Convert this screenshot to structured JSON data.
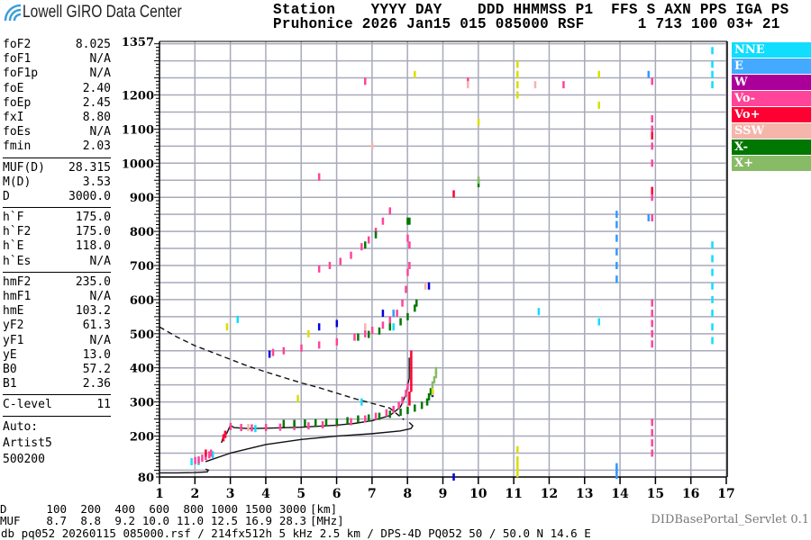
{
  "logo": {
    "text": "Lowell GIRO Data Center"
  },
  "header": {
    "line1": "Station    YYYY DAY    DDD HHMMSS P1  FFS S AXN PPS IGA PS",
    "line2": "Pruhonice 2026 Jan15 015 085000 RSF      1 713 100 03+ 21"
  },
  "params": {
    "group1": [
      [
        "foF2",
        "8.025"
      ],
      [
        "foF1",
        "N/A"
      ],
      [
        "foF1p",
        "N/A"
      ],
      [
        "foE",
        "2.40"
      ],
      [
        "foEp",
        "2.45"
      ],
      [
        "fxI",
        "8.80"
      ],
      [
        "foEs",
        "N/A"
      ],
      [
        "fmin",
        "2.03"
      ]
    ],
    "group2": [
      [
        "MUF(D)",
        "28.315"
      ],
      [
        "M(D)",
        "3.53"
      ],
      [
        "D",
        "3000.0"
      ]
    ],
    "group3": [
      [
        "h`F",
        "175.0"
      ],
      [
        "h`F2",
        "175.0"
      ],
      [
        "h`E",
        "118.0"
      ],
      [
        "h`Es",
        "N/A"
      ]
    ],
    "group4": [
      [
        "hmF2",
        "235.0"
      ],
      [
        "hmF1",
        "N/A"
      ],
      [
        "hmE",
        "103.2"
      ],
      [
        "yF2",
        "61.3"
      ],
      [
        "yF1",
        "N/A"
      ],
      [
        "yE",
        "13.0"
      ],
      [
        "B0",
        "57.2"
      ],
      [
        "B1",
        "2.36"
      ]
    ],
    "group5": [
      [
        "C-level",
        "11"
      ]
    ],
    "auto": [
      "Auto:",
      "Artist5",
      "500200"
    ]
  },
  "legend": [
    {
      "label": "NNE",
      "color": "#11ddff"
    },
    {
      "label": "E",
      "color": "#44aaff"
    },
    {
      "label": "W",
      "color": "#aa0099"
    },
    {
      "label": "Vo-",
      "color": "#ff4499"
    },
    {
      "label": "Vo+",
      "color": "#ff0033"
    },
    {
      "label": "SSW",
      "color": "#f5b5ab"
    },
    {
      "label": "X-",
      "color": "#007700"
    },
    {
      "label": "X+",
      "color": "#88bb66"
    }
  ],
  "footer": {
    "d_label": "D",
    "d_values": [
      "100",
      "200",
      "400",
      "600",
      "800",
      "1000",
      "1500",
      "3000",
      "[km]"
    ],
    "muf_label": "MUF",
    "muf_values": [
      "8.7",
      "8.8",
      "9.2",
      "10.0",
      "11.0",
      "12.5",
      "16.9",
      "28.3",
      "[MHz]"
    ],
    "info": "db pq052 20260115 085000.rsf / 214fx512h 5 kHz 2.5 km / DPS-4D PQ052 50 / 50.0 N 14.6 E",
    "servlet": "DIDBasePortal_Servlet 0.1"
  },
  "chart_data": {
    "type": "scatter",
    "xlim": [
      1,
      17
    ],
    "ylim": [
      80,
      1357
    ],
    "xticks": [
      "1",
      "2",
      "3",
      "4",
      "5",
      "6",
      "7",
      "8",
      "9",
      "10",
      "11",
      "12",
      "13",
      "14",
      "15",
      "16",
      "17"
    ],
    "yticks": [
      "80",
      "200",
      "300",
      "400",
      "500",
      "600",
      "700",
      "800",
      "900",
      "1000",
      "1100",
      "1200",
      "1357"
    ],
    "grid": true,
    "legend_position": "right",
    "series": [
      {
        "name": "NNE",
        "color": "#11ddff",
        "points": [
          [
            16.6,
            480
          ],
          [
            16.6,
            520
          ],
          [
            16.6,
            560
          ],
          [
            16.6,
            600
          ],
          [
            16.6,
            640
          ],
          [
            16.6,
            680
          ],
          [
            16.6,
            720
          ],
          [
            16.6,
            760
          ],
          [
            16.6,
            1230
          ],
          [
            16.6,
            1260
          ],
          [
            16.6,
            1290
          ],
          [
            16.6,
            1330
          ],
          [
            1.9,
            125
          ],
          [
            2.1,
            125
          ],
          [
            2.5,
            145
          ],
          [
            3.7,
            222
          ],
          [
            3.2,
            542
          ],
          [
            13.4,
            535
          ],
          [
            11.7,
            565
          ],
          [
            6.7,
            300
          ],
          [
            7.6,
            520
          ]
        ]
      },
      {
        "name": "E",
        "color": "#3399ff",
        "points": [
          [
            13.9,
            660
          ],
          [
            13.9,
            700
          ],
          [
            13.9,
            740
          ],
          [
            13.9,
            780
          ],
          [
            13.9,
            820
          ],
          [
            13.9,
            850
          ],
          [
            13.9,
            85
          ],
          [
            13.9,
            100
          ],
          [
            13.9,
            110
          ],
          [
            14.8,
            840
          ],
          [
            14.8,
            1260
          ],
          [
            7.6,
            560
          ]
        ]
      },
      {
        "name": "W",
        "color": "#0000dd",
        "points": [
          [
            5.5,
            520
          ],
          [
            4.1,
            440
          ],
          [
            6.0,
            530
          ],
          [
            7.3,
            560
          ],
          [
            8.6,
            640
          ],
          [
            8.7,
            325
          ],
          [
            9.3,
            80
          ]
        ]
      },
      {
        "name": "Vo-",
        "color": "#ff4499",
        "points": [
          [
            2.0,
            128
          ],
          [
            2.1,
            130
          ],
          [
            2.2,
            135
          ],
          [
            2.3,
            140
          ],
          [
            2.4,
            145
          ],
          [
            2.45,
            150
          ],
          [
            2.85,
            205
          ],
          [
            3.0,
            228
          ],
          [
            3.3,
            225
          ],
          [
            3.6,
            224
          ],
          [
            4.0,
            225
          ],
          [
            4.4,
            226
          ],
          [
            4.8,
            228
          ],
          [
            5.2,
            230
          ],
          [
            5.6,
            233
          ],
          [
            6.0,
            237
          ],
          [
            6.4,
            242
          ],
          [
            6.8,
            250
          ],
          [
            7.1,
            258
          ],
          [
            7.4,
            268
          ],
          [
            7.6,
            278
          ],
          [
            7.75,
            290
          ],
          [
            7.85,
            305
          ],
          [
            7.95,
            325
          ],
          [
            8.0,
            345
          ],
          [
            4.2,
            445
          ],
          [
            4.5,
            450
          ],
          [
            5.0,
            458
          ],
          [
            5.5,
            467
          ],
          [
            6.0,
            476
          ],
          [
            6.5,
            490
          ],
          [
            6.8,
            500
          ],
          [
            7.0,
            510
          ],
          [
            7.3,
            525
          ],
          [
            7.5,
            540
          ],
          [
            7.7,
            560
          ],
          [
            7.85,
            590
          ],
          [
            7.95,
            630
          ],
          [
            8.0,
            680
          ],
          [
            8.05,
            700
          ],
          [
            5.5,
            690
          ],
          [
            5.8,
            700
          ],
          [
            6.1,
            712
          ],
          [
            6.4,
            730
          ],
          [
            6.7,
            755
          ],
          [
            6.9,
            775
          ],
          [
            7.1,
            800
          ],
          [
            7.3,
            830
          ],
          [
            7.5,
            860
          ],
          [
            14.9,
            470
          ],
          [
            14.9,
            500
          ],
          [
            14.9,
            530
          ],
          [
            14.9,
            560
          ],
          [
            14.9,
            590
          ],
          [
            14.9,
            840
          ],
          [
            14.9,
            900
          ],
          [
            14.9,
            1000
          ],
          [
            14.9,
            1050
          ],
          [
            14.9,
            1100
          ],
          [
            14.9,
            1130
          ],
          [
            14.9,
            150
          ],
          [
            14.9,
            180
          ],
          [
            14.9,
            210
          ],
          [
            14.9,
            240
          ],
          [
            14.9,
            1240
          ],
          [
            6.8,
            1240
          ],
          [
            9.7,
            1240
          ],
          [
            12.4,
            1230
          ],
          [
            5.5,
            960
          ],
          [
            8.0,
            780
          ],
          [
            8.05,
            760
          ]
        ]
      },
      {
        "name": "Vo+",
        "color": "#ff0033",
        "points": [
          [
            8.05,
            300
          ],
          [
            8.05,
            320
          ],
          [
            8.1,
            340
          ],
          [
            8.1,
            360
          ],
          [
            8.1,
            380
          ],
          [
            8.1,
            400
          ],
          [
            8.1,
            420
          ],
          [
            8.1,
            440
          ],
          [
            2.8,
            195
          ],
          [
            2.85,
            205
          ],
          [
            2.3,
            150
          ],
          [
            9.3,
            910
          ],
          [
            14.9,
            920
          ],
          [
            14.9,
            1080
          ]
        ]
      },
      {
        "name": "SSW",
        "color": "#f5b5ab",
        "points": [
          [
            9.7,
            1230
          ],
          [
            11.6,
            1230
          ],
          [
            8.5,
            640
          ],
          [
            7.0,
            1050
          ],
          [
            6.8,
            520
          ],
          [
            3.5,
            225
          ]
        ]
      },
      {
        "name": "X-",
        "color": "#007700",
        "points": [
          [
            4.5,
            237
          ],
          [
            4.8,
            237
          ],
          [
            5.1,
            238
          ],
          [
            5.4,
            239
          ],
          [
            5.7,
            240
          ],
          [
            6.0,
            241
          ],
          [
            6.3,
            245
          ],
          [
            6.6,
            250
          ],
          [
            6.9,
            253
          ],
          [
            7.2,
            258
          ],
          [
            7.5,
            264
          ],
          [
            7.8,
            270
          ],
          [
            8.0,
            275
          ],
          [
            8.2,
            282
          ],
          [
            8.4,
            290
          ],
          [
            8.55,
            300
          ],
          [
            8.6,
            315
          ],
          [
            8.65,
            330
          ],
          [
            6.6,
            490
          ],
          [
            6.9,
            498
          ],
          [
            7.2,
            508
          ],
          [
            7.5,
            520
          ],
          [
            7.8,
            535
          ],
          [
            8.0,
            550
          ],
          [
            8.2,
            575
          ],
          [
            8.25,
            590
          ],
          [
            6.8,
            760
          ],
          [
            7.1,
            790
          ],
          [
            8.0,
            830
          ],
          [
            8.05,
            830
          ],
          [
            10.0,
            940
          ]
        ]
      },
      {
        "name": "X+",
        "color": "#88bb66",
        "points": [
          [
            8.7,
            350
          ],
          [
            8.75,
            365
          ],
          [
            8.8,
            380
          ],
          [
            8.8,
            392
          ],
          [
            10.0,
            950
          ]
        ]
      },
      {
        "color": "#dddd00",
        "points": [
          [
            11.1,
            90
          ],
          [
            11.1,
            110
          ],
          [
            11.1,
            130
          ],
          [
            11.1,
            160
          ],
          [
            11.1,
            1200
          ],
          [
            11.1,
            1230
          ],
          [
            11.1,
            1260
          ],
          [
            11.1,
            1290
          ],
          [
            10.0,
            1120
          ],
          [
            8.2,
            1260
          ],
          [
            13.4,
            1260
          ],
          [
            13.4,
            1170
          ],
          [
            4.9,
            310
          ],
          [
            2.9,
            520
          ],
          [
            5.2,
            500
          ],
          [
            8.7,
            330
          ]
        ]
      }
    ],
    "model_profile": [
      {
        "style": "solid",
        "points": [
          [
            1,
            92
          ],
          [
            1.5,
            92
          ],
          [
            2.0,
            93
          ],
          [
            2.35,
            95
          ],
          [
            2.38,
            100
          ],
          [
            2.3,
            103
          ]
        ]
      },
      {
        "style": "solid",
        "points": [
          [
            2.3,
            125
          ],
          [
            3,
            150
          ],
          [
            4,
            175
          ],
          [
            5,
            190
          ],
          [
            6,
            200
          ],
          [
            7,
            207
          ],
          [
            7.8,
            215
          ],
          [
            8.1,
            222
          ],
          [
            8.15,
            230
          ],
          [
            8.05,
            240
          ]
        ]
      },
      {
        "style": "solid",
        "points": [
          [
            2.75,
            180
          ],
          [
            2.8,
            198
          ],
          [
            2.9,
            208
          ],
          [
            3.0,
            232
          ],
          [
            3.1,
            225
          ],
          [
            3.5,
            222
          ],
          [
            4.0,
            223
          ],
          [
            5,
            226
          ],
          [
            6,
            232
          ],
          [
            6.5,
            237
          ],
          [
            7,
            245
          ],
          [
            7.5,
            260
          ],
          [
            7.8,
            285
          ],
          [
            7.95,
            320
          ],
          [
            8.05,
            370
          ],
          [
            8.05,
            430
          ]
        ]
      },
      {
        "style": "dashed",
        "points": [
          [
            1,
            520
          ],
          [
            1.5,
            490
          ],
          [
            2,
            465
          ],
          [
            2.5,
            445
          ],
          [
            3,
            425
          ],
          [
            3.5,
            405
          ],
          [
            4,
            388
          ],
          [
            4.5,
            372
          ],
          [
            5,
            356
          ],
          [
            5.5,
            342
          ],
          [
            6,
            326
          ],
          [
            6.5,
            310
          ],
          [
            7,
            296
          ],
          [
            7.5,
            282
          ],
          [
            7.9,
            248
          ]
        ]
      }
    ]
  }
}
